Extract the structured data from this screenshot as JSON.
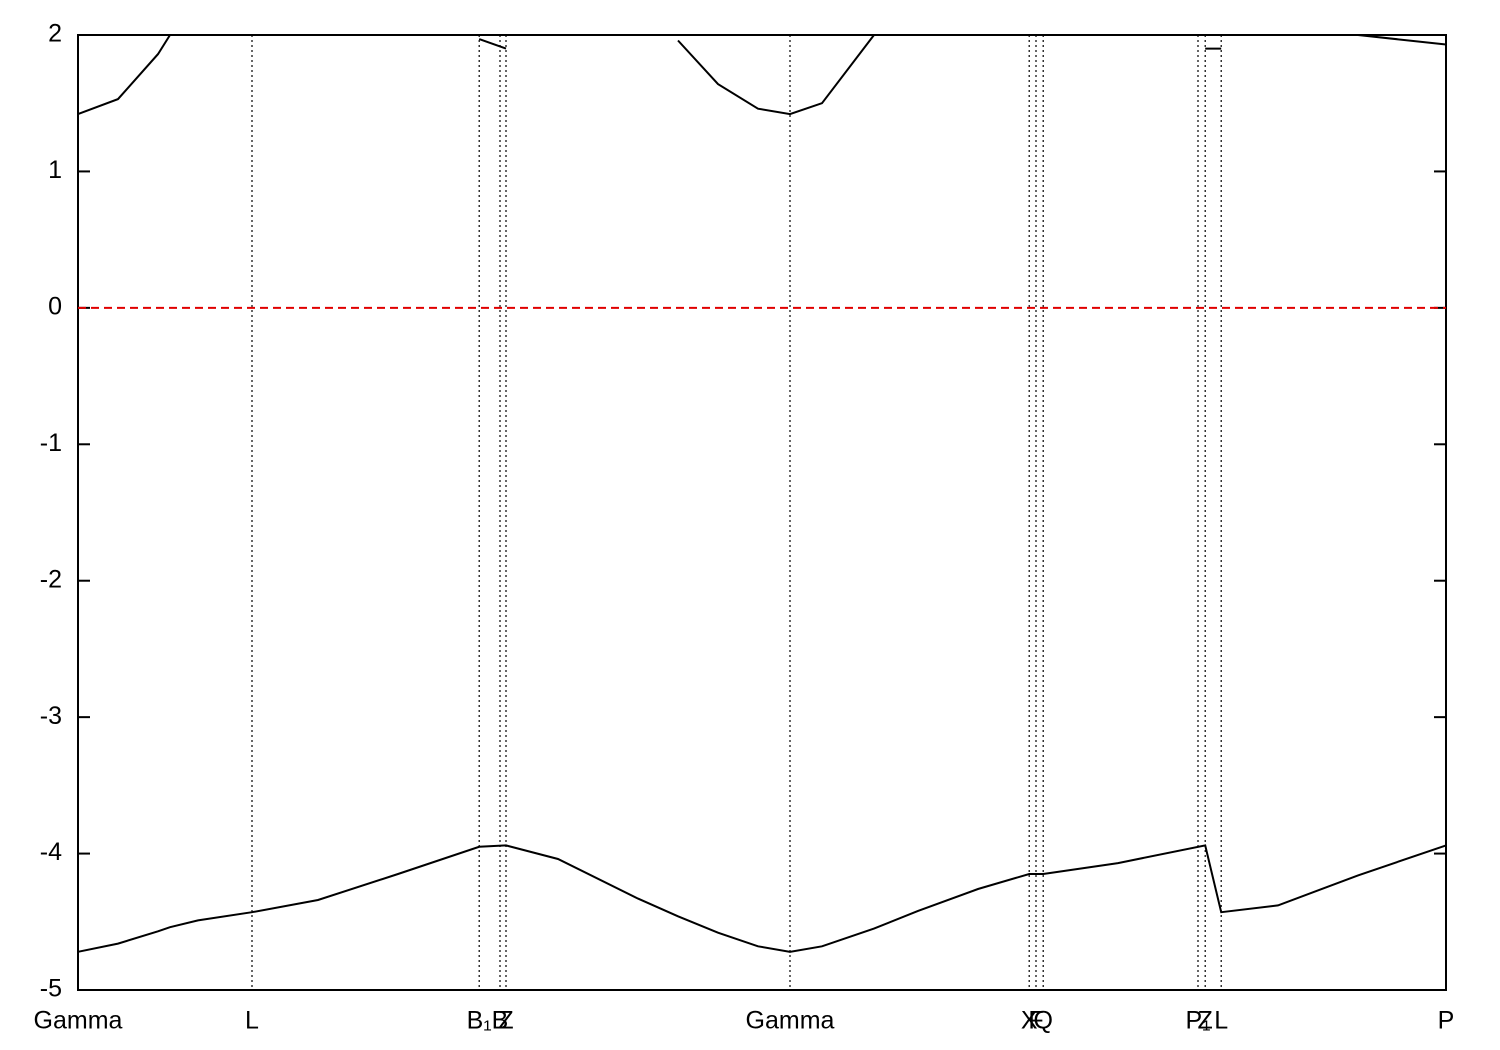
{
  "chart_data": {
    "type": "line",
    "x": [
      0,
      0.1,
      0.2,
      0.23,
      0.3,
      0.435,
      0.6,
      0.8,
      1.003,
      1.07,
      1.2,
      1.4,
      1.5,
      1.6,
      1.7,
      1.78,
      1.86,
      1.99,
      2.1,
      2.25,
      2.378,
      2.413,
      2.6,
      2.818,
      2.858,
      3.0,
      3.2,
      3.42
    ],
    "series": [
      {
        "color": "#000000",
        "values": [
          1.42,
          1.53,
          1.86,
          2.0,
          null,
          null,
          null,
          null,
          1.97,
          1.9,
          null,
          null,
          1.96,
          1.64,
          1.46,
          1.42,
          1.5,
          2.0,
          null,
          null,
          2.0,
          2.0,
          null,
          1.9,
          1.9,
          null,
          2.0,
          1.93
        ]
      },
      {
        "color": "#000000",
        "values": [
          -4.72,
          -4.66,
          -4.57,
          -4.54,
          -4.49,
          -4.43,
          -4.34,
          -4.15,
          -3.95,
          -3.94,
          -4.04,
          -4.33,
          -4.46,
          -4.58,
          -4.68,
          -4.72,
          -4.68,
          -4.55,
          -4.42,
          -4.26,
          -4.15,
          -4.15,
          -4.07,
          -3.94,
          -4.43,
          -4.38,
          -4.16,
          -3.94
        ]
      }
    ],
    "xlim": [
      0,
      3.42
    ],
    "xticks": [
      {
        "value": 0,
        "label": "Gamma"
      },
      {
        "value": 0.435,
        "label": "L"
      },
      {
        "value": 1.003,
        "label": "B₁"
      },
      {
        "value": 1.055,
        "label": "B"
      },
      {
        "value": 1.07,
        "label": "Z"
      },
      {
        "value": 1.78,
        "label": "Gamma"
      },
      {
        "value": 2.378,
        "label": "X"
      },
      {
        "value": 2.395,
        "label": "F"
      },
      {
        "value": 2.413,
        "label": "Q"
      },
      {
        "value": 2.8,
        "label": "P₁"
      },
      {
        "value": 2.818,
        "label": "Z"
      },
      {
        "value": 2.858,
        "label": "L"
      },
      {
        "value": 3.42,
        "label": "P"
      }
    ],
    "ylim": [
      -5,
      2
    ],
    "yticks": [
      -5,
      -4,
      -3,
      -2,
      -1,
      0,
      1,
      2
    ],
    "reference_line": {
      "value": 0,
      "color": "#e00000"
    },
    "vertical_grid": true
  }
}
